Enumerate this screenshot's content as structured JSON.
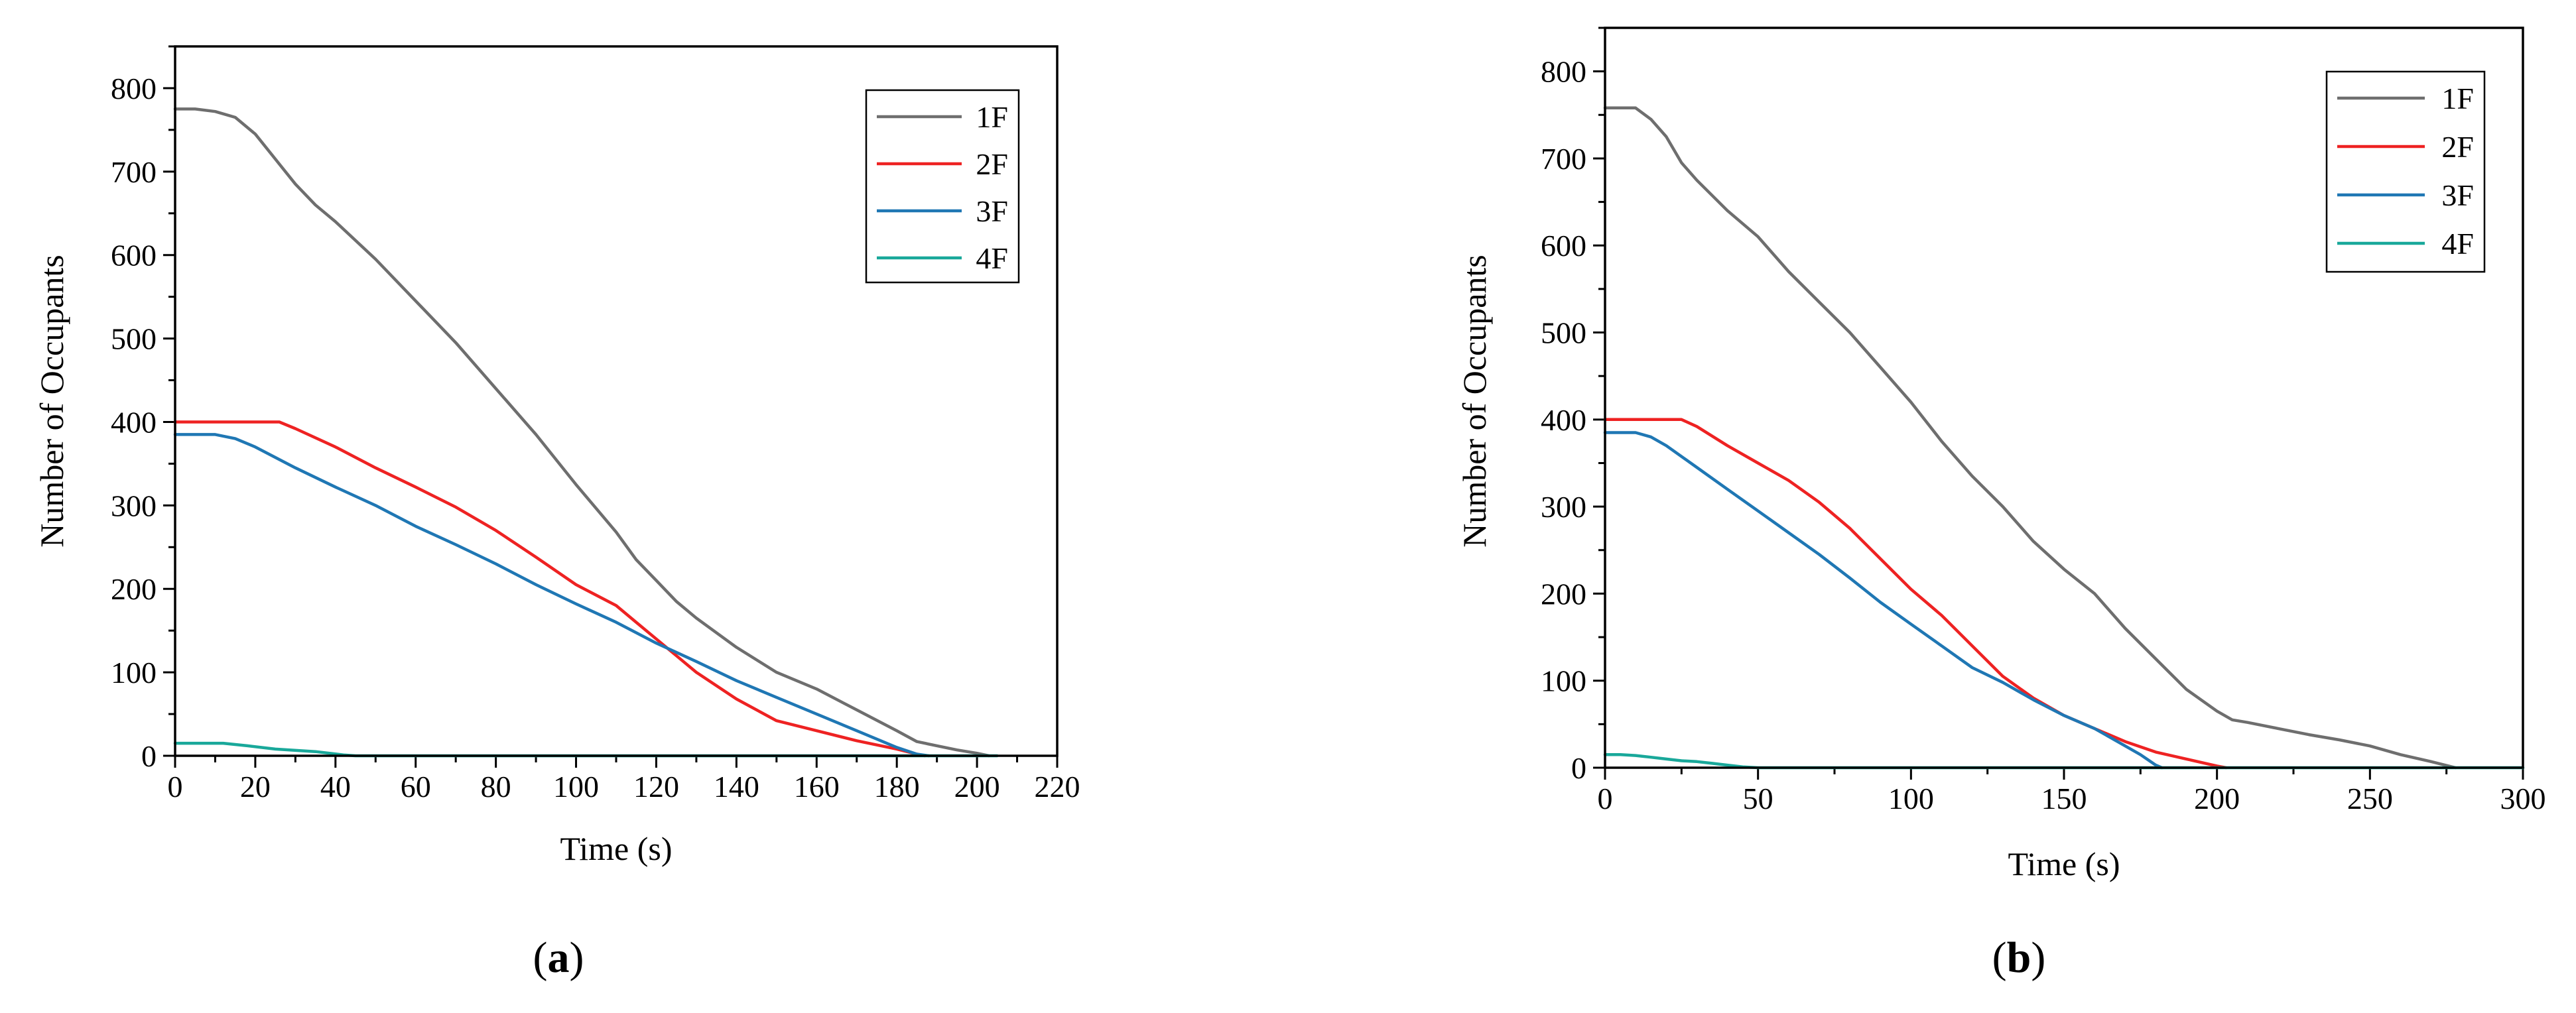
{
  "chart_data": [
    {
      "type": "line",
      "panel_label": "a",
      "title": "",
      "xlabel": "Time (s)",
      "ylabel": "Number of Occupants",
      "xlim": [
        0,
        220
      ],
      "ylim": [
        0,
        850
      ],
      "xticks": [
        0,
        20,
        40,
        60,
        80,
        100,
        120,
        140,
        160,
        180,
        200,
        220
      ],
      "yticks": [
        0,
        100,
        200,
        300,
        400,
        500,
        600,
        700,
        800
      ],
      "legend_position": "top-right",
      "series": [
        {
          "name": "1F",
          "color": "#6e6e6e",
          "x": [
            0,
            5,
            10,
            15,
            20,
            25,
            30,
            35,
            40,
            50,
            60,
            70,
            80,
            90,
            100,
            110,
            115,
            120,
            125,
            130,
            140,
            150,
            160,
            170,
            180,
            185,
            190,
            195,
            200,
            203
          ],
          "y": [
            775,
            775,
            772,
            765,
            745,
            715,
            685,
            660,
            640,
            595,
            545,
            495,
            440,
            385,
            325,
            268,
            235,
            210,
            185,
            165,
            130,
            100,
            80,
            55,
            30,
            17,
            12,
            7,
            3,
            0
          ]
        },
        {
          "name": "2F",
          "color": "#ee2222",
          "x": [
            0,
            10,
            20,
            26,
            30,
            40,
            50,
            60,
            70,
            80,
            90,
            100,
            110,
            115,
            120,
            130,
            140,
            150,
            160,
            170,
            180,
            185,
            187
          ],
          "y": [
            400,
            400,
            400,
            400,
            392,
            370,
            345,
            322,
            298,
            270,
            238,
            205,
            180,
            160,
            140,
            100,
            68,
            42,
            30,
            18,
            8,
            2,
            0
          ]
        },
        {
          "name": "3F",
          "color": "#1f77b4",
          "x": [
            0,
            5,
            10,
            15,
            20,
            30,
            40,
            50,
            60,
            70,
            80,
            90,
            100,
            110,
            120,
            130,
            140,
            150,
            160,
            170,
            180,
            185,
            188
          ],
          "y": [
            385,
            385,
            385,
            380,
            370,
            345,
            322,
            300,
            275,
            253,
            230,
            205,
            182,
            160,
            135,
            113,
            90,
            70,
            50,
            30,
            10,
            2,
            0
          ]
        },
        {
          "name": "4F",
          "color": "#19a89a",
          "x": [
            0,
            5,
            12,
            18,
            25,
            35,
            42,
            45,
            50,
            100,
            150,
            200,
            205
          ],
          "y": [
            15,
            15,
            15,
            12,
            8,
            5,
            1,
            0,
            0,
            0,
            0,
            0,
            0
          ]
        }
      ]
    },
    {
      "type": "line",
      "panel_label": "b",
      "title": "",
      "xlabel": "Time (s)",
      "ylabel": "Number of Occupants",
      "xlim": [
        0,
        300
      ],
      "ylim": [
        0,
        850
      ],
      "xticks": [
        0,
        50,
        100,
        150,
        200,
        250,
        300
      ],
      "yticks": [
        0,
        100,
        200,
        300,
        400,
        500,
        600,
        700,
        800
      ],
      "legend_position": "top-right",
      "series": [
        {
          "name": "1F",
          "color": "#6e6e6e",
          "x": [
            0,
            10,
            15,
            20,
            25,
            30,
            40,
            50,
            60,
            70,
            80,
            90,
            100,
            110,
            120,
            130,
            140,
            150,
            160,
            170,
            180,
            190,
            200,
            205,
            210,
            220,
            230,
            240,
            250,
            260,
            270,
            278
          ],
          "y": [
            758,
            758,
            745,
            725,
            695,
            675,
            640,
            610,
            570,
            535,
            500,
            460,
            420,
            375,
            335,
            300,
            260,
            228,
            200,
            160,
            125,
            90,
            65,
            55,
            52,
            45,
            38,
            32,
            25,
            15,
            7,
            0
          ]
        },
        {
          "name": "2F",
          "color": "#ee2222",
          "x": [
            0,
            10,
            20,
            25,
            30,
            40,
            50,
            60,
            70,
            80,
            90,
            100,
            110,
            120,
            130,
            140,
            150,
            160,
            170,
            180,
            190,
            200,
            203
          ],
          "y": [
            400,
            400,
            400,
            400,
            392,
            370,
            350,
            330,
            305,
            275,
            240,
            205,
            175,
            140,
            105,
            80,
            60,
            45,
            30,
            18,
            10,
            2,
            0
          ]
        },
        {
          "name": "3F",
          "color": "#1f77b4",
          "x": [
            0,
            5,
            10,
            15,
            20,
            30,
            40,
            50,
            60,
            70,
            80,
            90,
            100,
            110,
            120,
            130,
            140,
            150,
            160,
            170,
            175,
            180,
            182
          ],
          "y": [
            385,
            385,
            385,
            380,
            370,
            345,
            320,
            295,
            270,
            245,
            218,
            190,
            165,
            140,
            115,
            98,
            78,
            60,
            45,
            25,
            15,
            3,
            0
          ]
        },
        {
          "name": "4F",
          "color": "#19a89a",
          "x": [
            0,
            5,
            10,
            15,
            20,
            25,
            30,
            35,
            40,
            45,
            50,
            100,
            150,
            200,
            250,
            300
          ],
          "y": [
            15,
            15,
            14,
            12,
            10,
            8,
            7,
            5,
            3,
            1,
            0,
            0,
            0,
            0,
            0,
            0
          ]
        }
      ]
    }
  ]
}
